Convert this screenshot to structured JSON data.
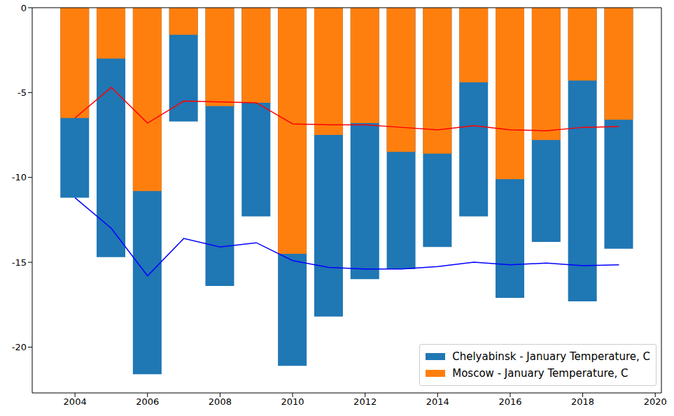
{
  "chart_data": {
    "type": "bar",
    "legend": "lower right",
    "x": [
      2004,
      2005,
      2006,
      2007,
      2008,
      2009,
      2010,
      2011,
      2012,
      2013,
      2014,
      2015,
      2016,
      2017,
      2018,
      2019
    ],
    "xlim": [
      2002.82,
      2020.17
    ],
    "xticks": [
      2004,
      2006,
      2008,
      2010,
      2012,
      2014,
      2016,
      2018,
      2020
    ],
    "ylim": [
      -22.7,
      0
    ],
    "yticks": [
      -20,
      -15,
      -10,
      -5,
      0
    ],
    "series": [
      {
        "name": "Chelyabinsk - January Temperature, C",
        "type": "bar",
        "color": "#1f77b4",
        "values": [
          -11.2,
          -14.7,
          -21.6,
          -6.7,
          -16.4,
          -12.3,
          -21.1,
          -18.2,
          -16.0,
          -15.4,
          -14.1,
          -12.3,
          -17.1,
          -13.8,
          -17.3,
          -14.2
        ]
      },
      {
        "name": "Moscow - January Temperature, C",
        "type": "bar",
        "color": "#ff7f0e",
        "values": [
          -6.5,
          -3.0,
          -10.8,
          -1.6,
          -5.8,
          -5.6,
          -14.5,
          -7.5,
          -6.8,
          -8.5,
          -8.6,
          -4.4,
          -10.1,
          -7.8,
          -4.3,
          -6.6
        ]
      },
      {
        "type": "line",
        "color": "#ff0000",
        "values": [
          -6.5,
          -4.7,
          -6.8,
          -5.5,
          -5.55,
          -5.6,
          -6.85,
          -6.9,
          -6.9,
          -7.05,
          -7.2,
          -6.95,
          -7.2,
          -7.25,
          -7.05,
          -7.0
        ]
      },
      {
        "type": "line",
        "color": "#0000ff",
        "values": [
          -11.2,
          -13.0,
          -15.8,
          -13.6,
          -14.1,
          -13.85,
          -14.9,
          -15.3,
          -15.4,
          -15.4,
          -15.25,
          -15.0,
          -15.15,
          -15.05,
          -15.2,
          -15.15
        ]
      }
    ]
  }
}
